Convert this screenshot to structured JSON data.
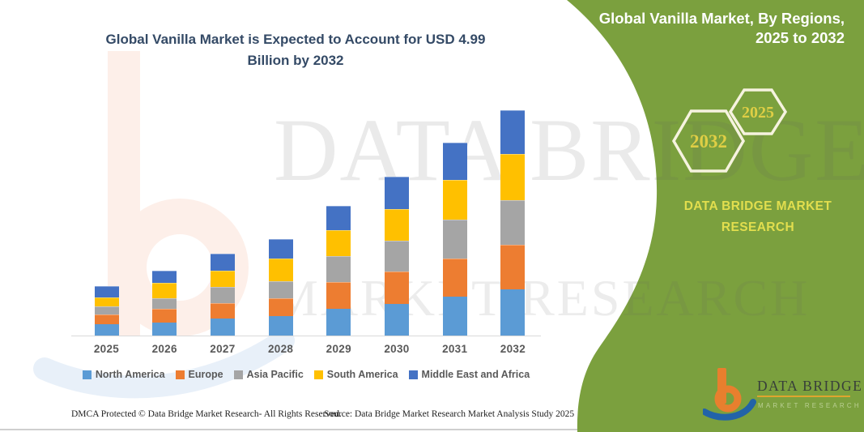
{
  "title": {
    "line1": "Global Vanilla Market is Expected to Account for USD 4.99",
    "line2": "Billion by 2032"
  },
  "side_panel": {
    "heading_line1": "Global Vanilla Market, By Regions,",
    "heading_line2": "2025 to 2032",
    "hexagons": [
      {
        "label": "2032"
      },
      {
        "label": "2025"
      }
    ],
    "brand_line1": "DATA BRIDGE MARKET",
    "brand_line2": "RESEARCH",
    "colors": {
      "panel_green": "#7ba03e",
      "hex_border": "#f6f3df",
      "accent_yellow": "#dfce45",
      "brand_yellow": "#e2de4e"
    }
  },
  "watermark": {
    "line1": "DATA BRIDGE",
    "line2": "MARKET RESEARCH"
  },
  "chart_data": {
    "type": "bar",
    "stacked": true,
    "title": "Global Vanilla Market is Expected to Account for USD 4.99 Billion by 2032",
    "unit": "USD Billion",
    "categories": [
      "2025",
      "2026",
      "2027",
      "2028",
      "2029",
      "2030",
      "2031",
      "2032"
    ],
    "series": [
      {
        "name": "North America",
        "color": "#5B9BD5",
        "values": [
          0.25,
          0.29,
          0.38,
          0.43,
          0.59,
          0.7,
          0.86,
          1.02
        ]
      },
      {
        "name": "Europe",
        "color": "#ED7D31",
        "values": [
          0.21,
          0.3,
          0.33,
          0.39,
          0.6,
          0.72,
          0.85,
          0.99
        ]
      },
      {
        "name": "Asia Pacific",
        "color": "#A5A5A5",
        "values": [
          0.18,
          0.24,
          0.36,
          0.39,
          0.57,
          0.69,
          0.86,
          0.99
        ]
      },
      {
        "name": "South America",
        "color": "#FFC000",
        "values": [
          0.21,
          0.33,
          0.36,
          0.49,
          0.57,
          0.7,
          0.87,
          1.02
        ]
      },
      {
        "name": "Middle East and Africa",
        "color": "#4472C4",
        "values": [
          0.24,
          0.28,
          0.39,
          0.44,
          0.54,
          0.71,
          0.84,
          0.97
        ]
      }
    ],
    "totals": [
      1.09,
      1.44,
      1.82,
      2.14,
      2.87,
      3.52,
      4.28,
      4.99
    ],
    "ylim": [
      0,
      5.2
    ],
    "values_estimated": true,
    "axes": {
      "y_axis_visible": false,
      "gridlines": false
    },
    "legend_position": "bottom"
  },
  "logo": {
    "name_text": "DATA BRIDGE",
    "subtitle_text": "MARKET RESEARCH"
  },
  "footer": {
    "left": "DMCA Protected © Data Bridge Market Research-  All Rights Reserved.",
    "right": "Source: Data Bridge Market Research  Market Analysis Study 2025"
  }
}
